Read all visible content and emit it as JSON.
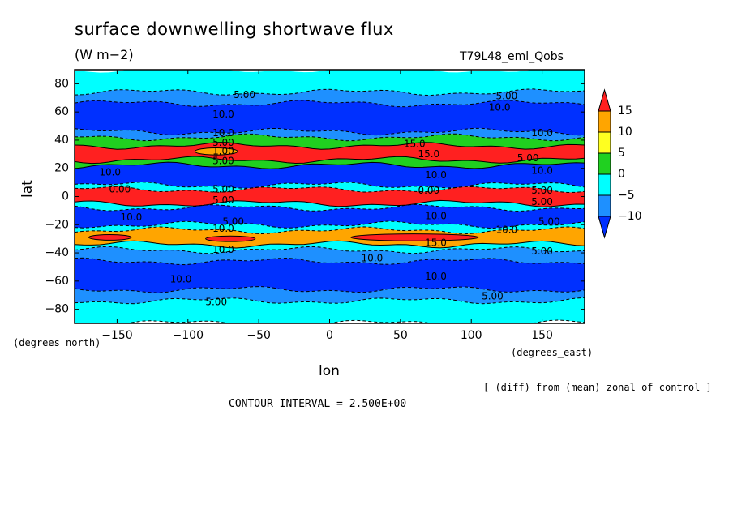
{
  "chart_data": {
    "type": "heatmap",
    "title": "surface downwelling shortwave flux",
    "units": "(W m−2)",
    "experiment": "T79L48_eml_Qobs",
    "xlabel": "lon",
    "ylabel": "lat",
    "x_units": "(degrees_east)",
    "y_units": "(degrees_north)",
    "xlim": [
      -180,
      180
    ],
    "ylim": [
      -90,
      90
    ],
    "x_ticks": [
      -150,
      -100,
      -50,
      0,
      50,
      100,
      150
    ],
    "x_tick_labels": [
      "−150",
      "−100",
      "−50",
      "0",
      "50",
      "100",
      "150"
    ],
    "y_ticks": [
      80,
      60,
      40,
      20,
      0,
      -20,
      -40,
      -60,
      -80
    ],
    "y_tick_labels": [
      "80",
      "60",
      "40",
      "20",
      "0",
      "−20",
      "−40",
      "−60",
      "−80"
    ],
    "note": "[ (diff) from (mean) zonal of control ]",
    "contour_interval": "CONTOUR INTERVAL = 2.500E+00",
    "colorbar": {
      "levels": [
        15,
        10,
        5,
        0,
        -5,
        -10
      ],
      "level_labels": [
        "15",
        "10",
        "5",
        "0",
        "−5",
        "−10"
      ],
      "colors": [
        "#ff2020",
        "#ffa500",
        "#ffff20",
        "#20d020",
        "#00ffff",
        "#1e90ff",
        "#0030ff"
      ]
    },
    "bands": [
      {
        "lat_from": 90,
        "lat_to": 74,
        "value": -3
      },
      {
        "lat_from": 74,
        "lat_to": 66,
        "value": -7
      },
      {
        "lat_from": 66,
        "lat_to": 46,
        "value": -12
      },
      {
        "lat_from": 46,
        "lat_to": 42,
        "value": -7
      },
      {
        "lat_from": 42,
        "lat_to": 36,
        "value": 3
      },
      {
        "lat_from": 36,
        "lat_to": 26,
        "value": 17
      },
      {
        "lat_from": 26,
        "lat_to": 22,
        "value": 3
      },
      {
        "lat_from": 22,
        "lat_to": 8,
        "value": -12
      },
      {
        "lat_from": 8,
        "lat_to": 5,
        "value": -3
      },
      {
        "lat_from": 5,
        "lat_to": -5,
        "value": 17
      },
      {
        "lat_from": -5,
        "lat_to": -8,
        "value": -3
      },
      {
        "lat_from": -8,
        "lat_to": -20,
        "value": -12
      },
      {
        "lat_from": -20,
        "lat_to": -24,
        "value": -3
      },
      {
        "lat_from": -24,
        "lat_to": -34,
        "value": 13
      },
      {
        "lat_from": -34,
        "lat_to": -38,
        "value": -3
      },
      {
        "lat_from": -38,
        "lat_to": -46,
        "value": -7
      },
      {
        "lat_from": -46,
        "lat_to": -66,
        "value": -12
      },
      {
        "lat_from": -66,
        "lat_to": -74,
        "value": -7
      },
      {
        "lat_from": -74,
        "lat_to": -90,
        "value": -3
      }
    ],
    "blobs": [
      {
        "lon": -155,
        "lat": -29,
        "w": 30,
        "h": 4,
        "value": 17
      },
      {
        "lon": -70,
        "lat": -30,
        "w": 35,
        "h": 4,
        "value": 17
      },
      {
        "lon": 60,
        "lat": -29,
        "w": 90,
        "h": 5,
        "value": 17
      },
      {
        "lon": -80,
        "lat": 32,
        "w": 30,
        "h": 5,
        "value": 12
      }
    ],
    "contour_labels": [
      {
        "lon": -60,
        "lat": 72,
        "text": "5.00"
      },
      {
        "lon": -75,
        "lat": 58,
        "text": "10.0"
      },
      {
        "lon": -75,
        "lat": 45,
        "text": "10.0"
      },
      {
        "lon": -75,
        "lat": 38,
        "text": "5.00"
      },
      {
        "lon": -75,
        "lat": 32,
        "text": "1.00"
      },
      {
        "lon": -75,
        "lat": 25,
        "text": "5.00"
      },
      {
        "lon": -155,
        "lat": 17,
        "text": "10.0"
      },
      {
        "lon": -148,
        "lat": 5,
        "text": "0.00"
      },
      {
        "lon": -75,
        "lat": 5,
        "text": "5.00"
      },
      {
        "lon": -75,
        "lat": -3,
        "text": "5.00"
      },
      {
        "lon": -140,
        "lat": -15,
        "text": "10.0"
      },
      {
        "lon": -68,
        "lat": -18,
        "text": "5.00"
      },
      {
        "lon": -75,
        "lat": -23,
        "text": "10.0"
      },
      {
        "lon": -75,
        "lat": -38,
        "text": "10.0"
      },
      {
        "lon": 30,
        "lat": -44,
        "text": "10.0"
      },
      {
        "lon": -105,
        "lat": -59,
        "text": "10.0"
      },
      {
        "lon": -80,
        "lat": -75,
        "text": "5.00"
      },
      {
        "lon": 125,
        "lat": 71,
        "text": "5.00"
      },
      {
        "lon": 120,
        "lat": 63,
        "text": "10.0"
      },
      {
        "lon": 150,
        "lat": 45,
        "text": "10.0"
      },
      {
        "lon": 60,
        "lat": 37,
        "text": "15.0"
      },
      {
        "lon": 70,
        "lat": 30,
        "text": "15.0"
      },
      {
        "lon": 140,
        "lat": 27,
        "text": "5.00"
      },
      {
        "lon": 150,
        "lat": 18,
        "text": "10.0"
      },
      {
        "lon": 75,
        "lat": 15,
        "text": "10.0"
      },
      {
        "lon": 70,
        "lat": 4,
        "text": "0.00"
      },
      {
        "lon": 150,
        "lat": 4,
        "text": "5.00"
      },
      {
        "lon": 150,
        "lat": -4,
        "text": "5.00"
      },
      {
        "lon": 75,
        "lat": -14,
        "text": "10.0"
      },
      {
        "lon": 155,
        "lat": -18,
        "text": "5.00"
      },
      {
        "lon": 125,
        "lat": -24,
        "text": "10.0"
      },
      {
        "lon": 75,
        "lat": -33,
        "text": "15.0"
      },
      {
        "lon": 150,
        "lat": -39,
        "text": "5.00"
      },
      {
        "lon": 75,
        "lat": -57,
        "text": "10.0"
      },
      {
        "lon": 115,
        "lat": -71,
        "text": "5.00"
      }
    ]
  }
}
